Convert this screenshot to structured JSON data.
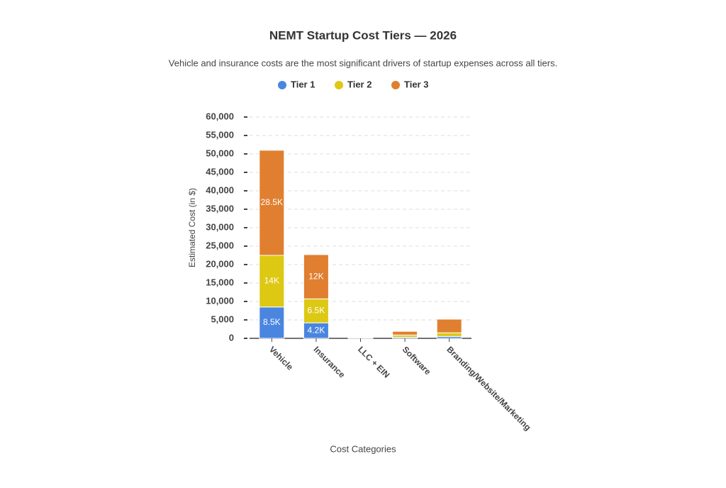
{
  "chart_data": {
    "type": "bar",
    "stacked": true,
    "title": "NEMT Startup Cost Tiers — 2026",
    "subtitle": "Vehicle and insurance costs are the most significant drivers of startup expenses across all tiers.",
    "x_label": "Cost Categories",
    "y_label": "Estimated Cost (in $)",
    "categories": [
      "Vehicle",
      "Insurance",
      "LLC + EIN",
      "Software",
      "Branding/Website/Marketing"
    ],
    "series": [
      {
        "name": "Tier 1",
        "color": "#4a86e0",
        "values": [
          8500,
          4200,
          100,
          300,
          500
        ],
        "value_labels": [
          "8.5K",
          "4.2K",
          null,
          null,
          null
        ]
      },
      {
        "name": "Tier 2",
        "color": "#ddc813",
        "values": [
          14000,
          6500,
          100,
          600,
          1000
        ],
        "value_labels": [
          "14K",
          "6.5K",
          null,
          null,
          null
        ]
      },
      {
        "name": "Tier 3",
        "color": "#e07f30",
        "values": [
          28500,
          12000,
          200,
          1000,
          3700
        ],
        "value_labels": [
          "28.5K",
          "12K",
          null,
          null,
          null
        ]
      }
    ],
    "ylim": [
      0,
      60000
    ],
    "yticks": [
      0,
      {
        "value": 5000,
        "label": "5,000"
      },
      {
        "value": 10000,
        "label": "10,000"
      },
      {
        "value": 15000,
        "label": "15,000"
      },
      {
        "value": 20000,
        "label": "20,000"
      },
      {
        "value": 25000,
        "label": "25,000"
      },
      {
        "value": 30000,
        "label": "30,000"
      },
      {
        "value": 35000,
        "label": "35,000"
      },
      {
        "value": 40000,
        "label": "40,000"
      },
      {
        "value": 45000,
        "label": "45,000"
      },
      {
        "value": 50000,
        "label": "50,000"
      },
      {
        "value": 55000,
        "label": "55,000"
      },
      {
        "value": 60000,
        "label": "60,000"
      }
    ],
    "grid": true,
    "legend": "top"
  }
}
